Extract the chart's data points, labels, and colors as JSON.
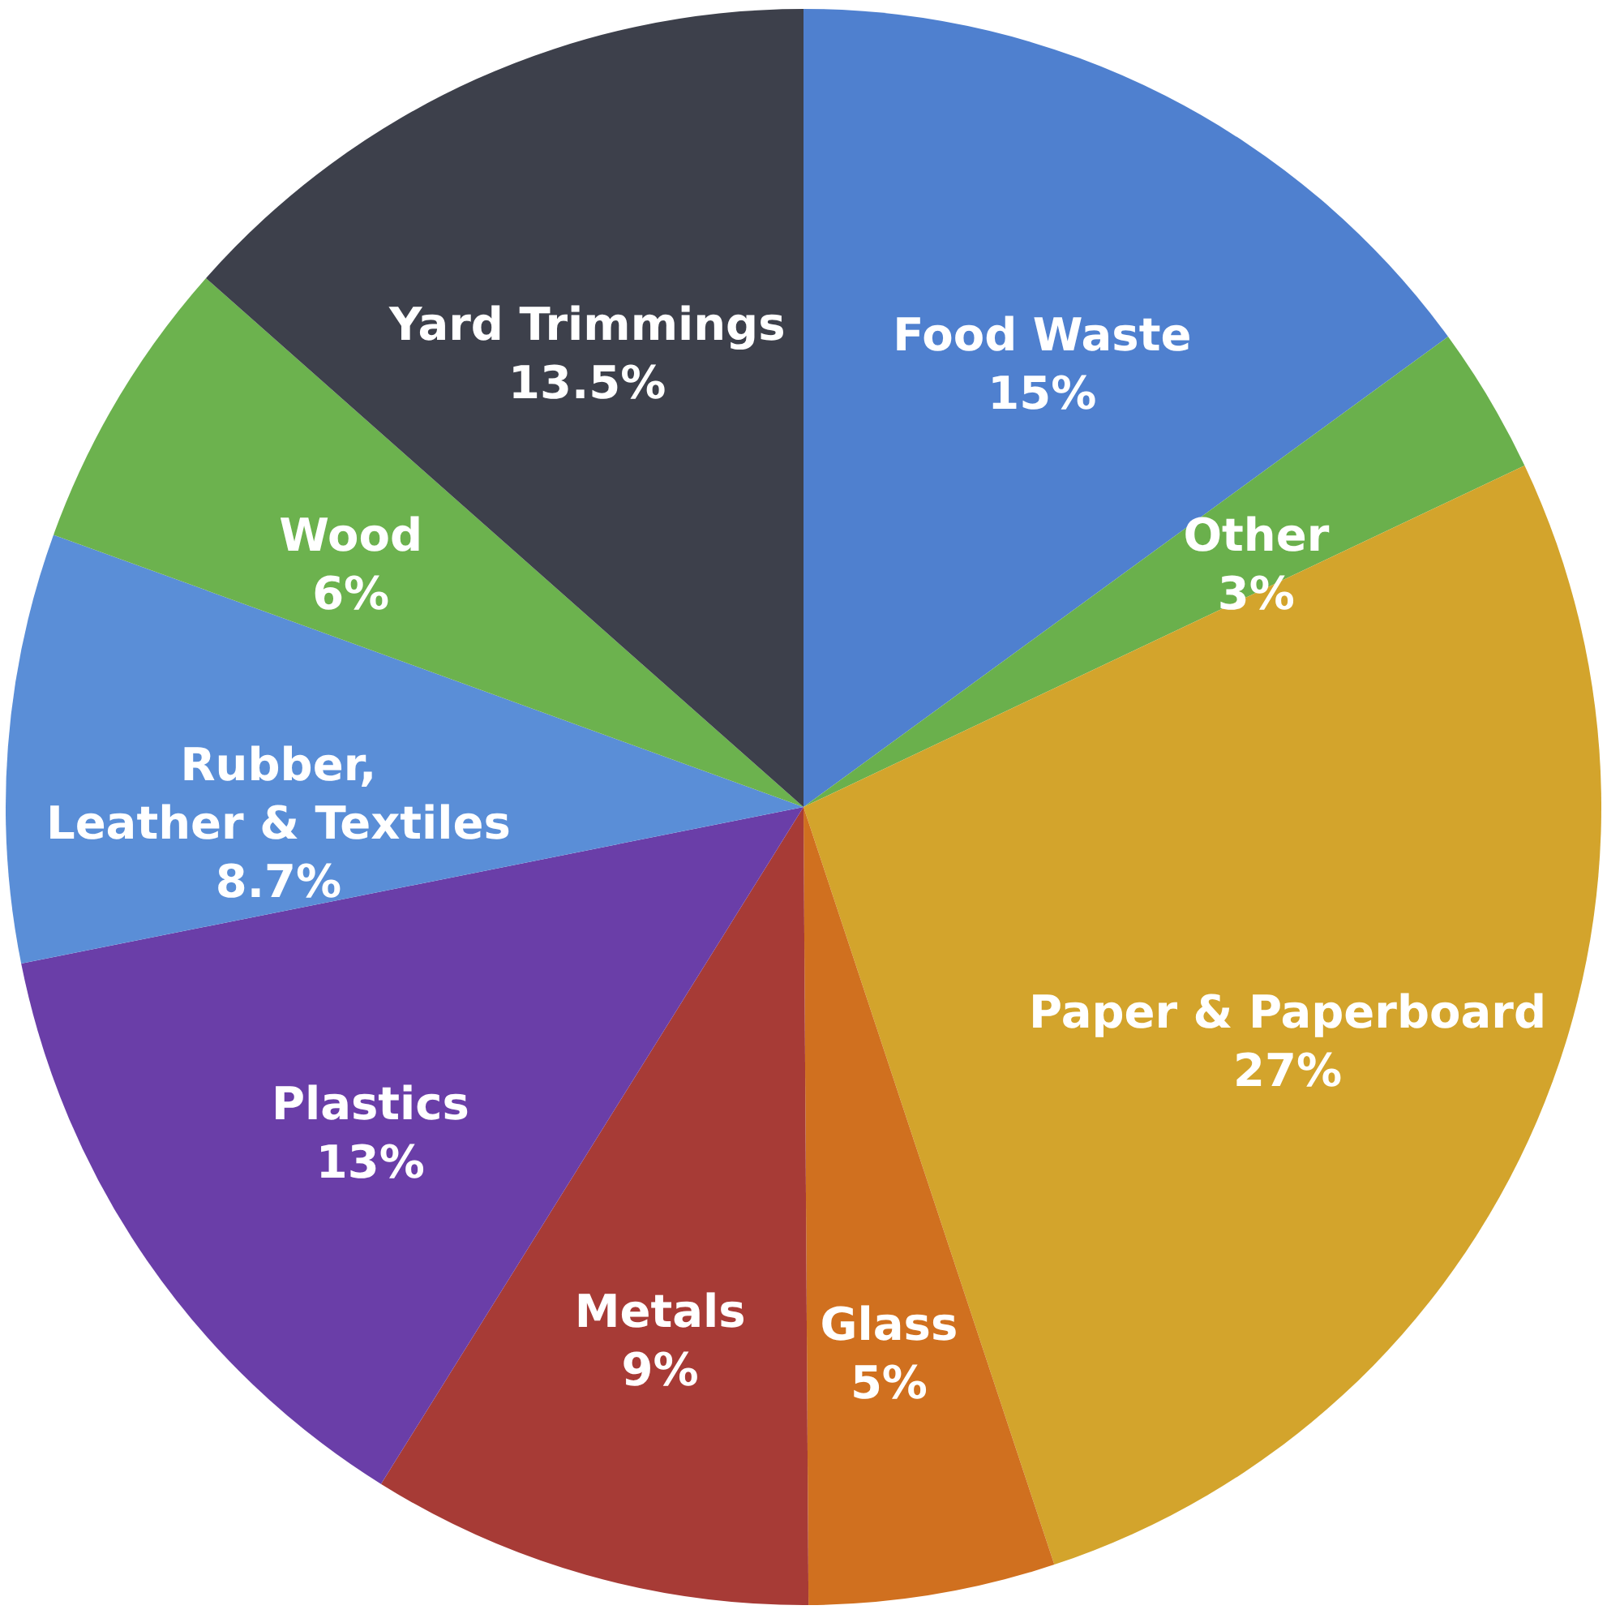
{
  "chart_data": {
    "type": "pie",
    "categories": [
      "Food Waste",
      "Other",
      "Paper & Paperboard",
      "Glass",
      "Metals",
      "Plastics",
      "Rubber, Leather & Textiles",
      "Wood",
      "Yard Trimmings"
    ],
    "values": [
      15,
      3,
      27,
      5,
      9,
      13,
      8.7,
      6,
      13.5
    ],
    "value_labels": [
      "15%",
      "3%",
      "27%",
      "5%",
      "9%",
      "13%",
      "8.7%",
      "6%",
      "13.5%"
    ],
    "colors": [
      "#4f80cf",
      "#6ab04c",
      "#d3a42c",
      "#d0701f",
      "#a73b36",
      "#6a3ea8",
      "#5a8ed7",
      "#6cb24e",
      "#3d404b"
    ]
  }
}
